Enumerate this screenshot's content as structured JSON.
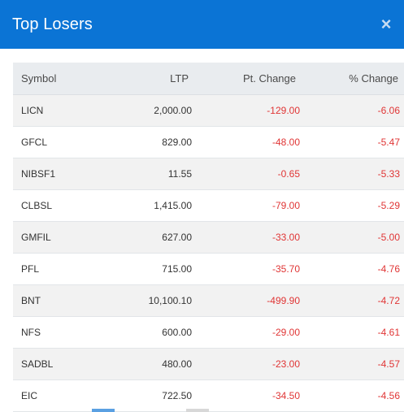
{
  "header": {
    "title": "Top Losers",
    "close_glyph": "×",
    "close_icon": "close-icon"
  },
  "table": {
    "columns": [
      "Symbol",
      "LTP",
      "Pt. Change",
      "% Change"
    ],
    "rows": [
      {
        "symbol": "LICN",
        "ltp": "2,000.00",
        "pt_change": "-129.00",
        "pct_change": "-6.06"
      },
      {
        "symbol": "GFCL",
        "ltp": "829.00",
        "pt_change": "-48.00",
        "pct_change": "-5.47"
      },
      {
        "symbol": "NIBSF1",
        "ltp": "11.55",
        "pt_change": "-0.65",
        "pct_change": "-5.33"
      },
      {
        "symbol": "CLBSL",
        "ltp": "1,415.00",
        "pt_change": "-79.00",
        "pct_change": "-5.29"
      },
      {
        "symbol": "GMFIL",
        "ltp": "627.00",
        "pt_change": "-33.00",
        "pct_change": "-5.00"
      },
      {
        "symbol": "PFL",
        "ltp": "715.00",
        "pt_change": "-35.70",
        "pct_change": "-4.76"
      },
      {
        "symbol": "BNT",
        "ltp": "10,100.10",
        "pt_change": "-499.90",
        "pct_change": "-4.72"
      },
      {
        "symbol": "NFS",
        "ltp": "600.00",
        "pt_change": "-29.00",
        "pct_change": "-4.61"
      },
      {
        "symbol": "SADBL",
        "ltp": "480.00",
        "pt_change": "-23.00",
        "pct_change": "-4.57"
      },
      {
        "symbol": "EIC",
        "ltp": "722.50",
        "pt_change": "-34.50",
        "pct_change": "-4.56"
      }
    ]
  },
  "colors": {
    "header_bg": "#0b74d5",
    "negative": "#e03535",
    "header_row_bg": "#e9ecef"
  }
}
